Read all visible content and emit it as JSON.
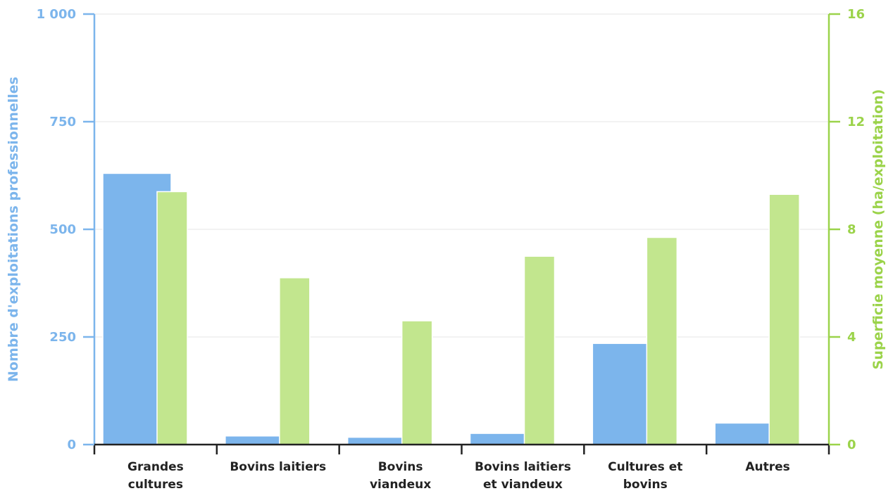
{
  "chart_data": {
    "type": "bar",
    "categories": [
      [
        "Grandes",
        "cultures"
      ],
      [
        "Bovins laitiers"
      ],
      [
        "Bovins",
        "viandeux"
      ],
      [
        "Bovins laitiers",
        "et viandeux"
      ],
      [
        "Cultures et",
        "bovins"
      ],
      [
        "Autres"
      ]
    ],
    "series": [
      {
        "axis": "left",
        "color": "#7cb5ec",
        "values": [
          630,
          20,
          17,
          26,
          235,
          50
        ]
      },
      {
        "axis": "right",
        "color": "#c2e68e",
        "values": [
          9.4,
          6.2,
          4.6,
          7.0,
          7.7,
          9.3
        ]
      }
    ],
    "left_axis": {
      "label": "Nombre d'exploitations professionnelles",
      "ylim": [
        0,
        1000
      ],
      "ticks": [
        0,
        250,
        500,
        750,
        1000
      ],
      "tick_labels": [
        "0",
        "250",
        "500",
        "750",
        "1 000"
      ],
      "color": "#7cb5ec"
    },
    "right_axis": {
      "label": "Superficie moyenne (ha/exploitation)",
      "ylim": [
        0,
        16
      ],
      "ticks": [
        0,
        4,
        8,
        12,
        16
      ],
      "tick_labels": [
        "0",
        "4",
        "8",
        "12",
        "16"
      ],
      "color": "#9bd34a"
    },
    "grid": true,
    "legend": "none"
  }
}
